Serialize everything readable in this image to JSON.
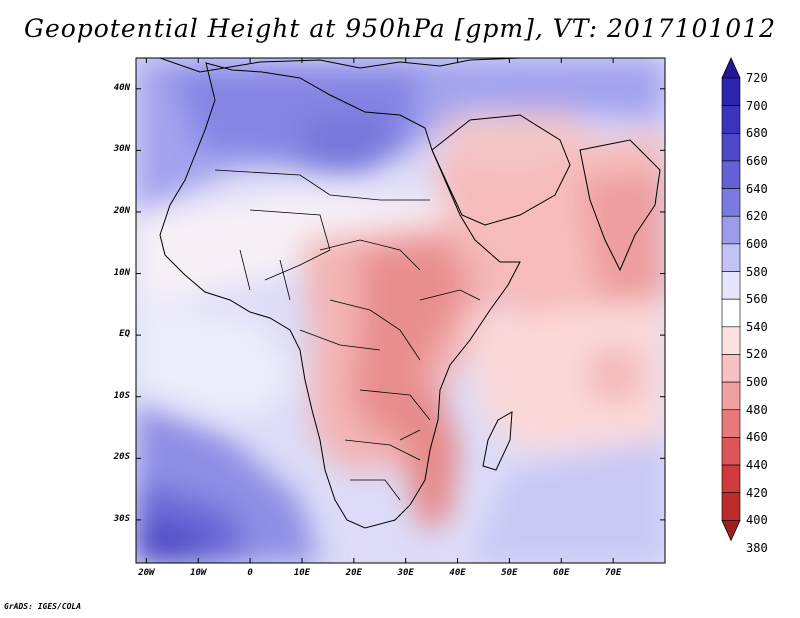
{
  "title": "Geopotential Height at 950hPa [gpm], VT: 2017101012",
  "credit": "GrADS: IGES/COLA",
  "map": {
    "variable": "Geopotential Height",
    "level": "950hPa",
    "units": "gpm",
    "valid_time": "2017101012",
    "lon_range": [
      -22,
      80
    ],
    "lat_range": [
      -37,
      45
    ],
    "lat_ticks": [
      {
        "value": 40,
        "label": "40N"
      },
      {
        "value": 30,
        "label": "30N"
      },
      {
        "value": 20,
        "label": "20N"
      },
      {
        "value": 10,
        "label": "10N"
      },
      {
        "value": 0,
        "label": "EQ"
      },
      {
        "value": -10,
        "label": "10S"
      },
      {
        "value": -20,
        "label": "20S"
      },
      {
        "value": -30,
        "label": "30S"
      }
    ],
    "lon_ticks": [
      {
        "value": -20,
        "label": "20W"
      },
      {
        "value": -10,
        "label": "10W"
      },
      {
        "value": 0,
        "label": "0"
      },
      {
        "value": 10,
        "label": "10E"
      },
      {
        "value": 20,
        "label": "20E"
      },
      {
        "value": 30,
        "label": "30E"
      },
      {
        "value": 40,
        "label": "40E"
      },
      {
        "value": 50,
        "label": "50E"
      },
      {
        "value": 60,
        "label": "60E"
      },
      {
        "value": 70,
        "label": "70E"
      }
    ]
  },
  "colorbar": {
    "levels": [
      720,
      700,
      680,
      660,
      640,
      620,
      600,
      580,
      560,
      540,
      520,
      500,
      480,
      460,
      440,
      420,
      400,
      380
    ],
    "colors": [
      "#22169a",
      "#2e23ae",
      "#3c33bd",
      "#4e47c8",
      "#6361d4",
      "#7a7ae0",
      "#9c9cea",
      "#c2c2f4",
      "#e5e5fb",
      "#ffffff",
      "#fde1e1",
      "#f8c1c1",
      "#f0a0a0",
      "#e67a7a",
      "#db5656",
      "#cf3a3a",
      "#bd2a2a",
      "#a01e1e"
    ]
  }
}
